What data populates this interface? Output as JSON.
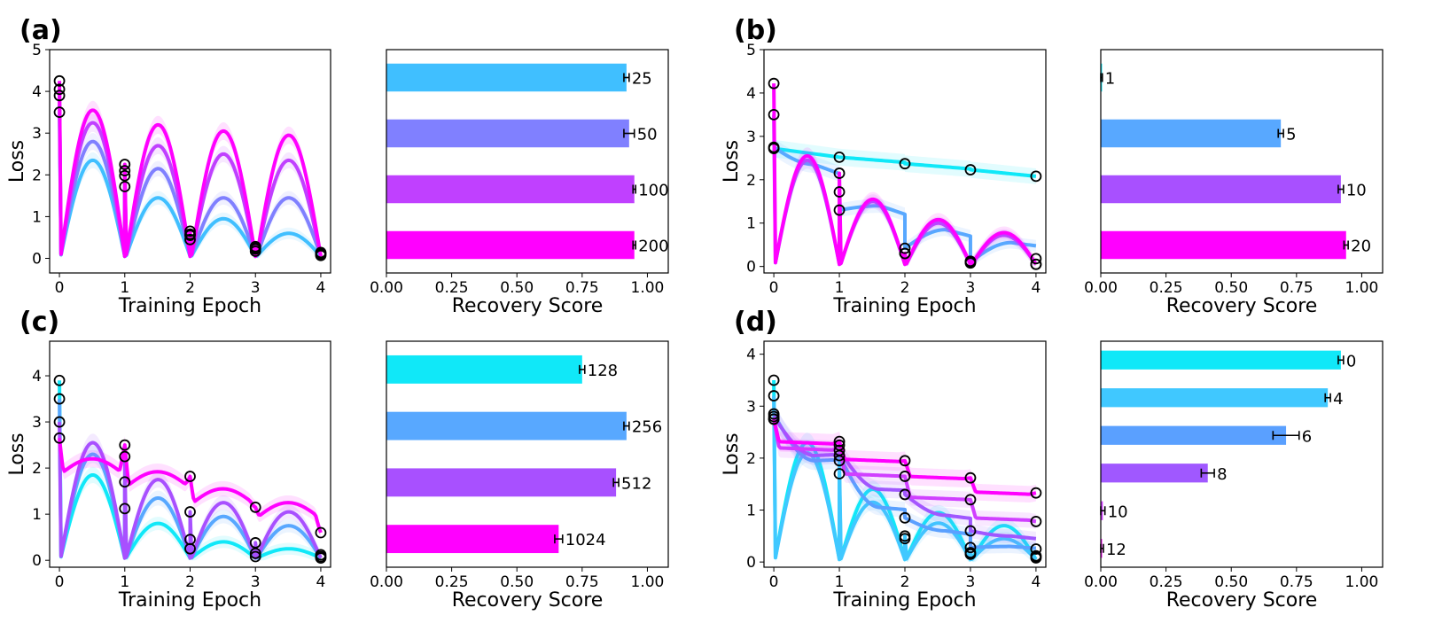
{
  "figure": {
    "panels": [
      "(a)",
      "(b)",
      "(c)",
      "(d)"
    ],
    "loss_ylabel": "Loss",
    "loss_xlabel": "Training Epoch",
    "bar_xlabel": "Recovery Score"
  },
  "chart_data": [
    {
      "panel": "(a)",
      "type": "line",
      "xlabel": "Training Epoch",
      "ylabel": "Loss",
      "xlim": [
        -0.15,
        4.15
      ],
      "ylim": [
        -0.35,
        5.0
      ],
      "xticks": [
        0,
        1,
        2,
        3,
        4
      ],
      "yticks": [
        0,
        1,
        2,
        3,
        4,
        5
      ],
      "grid": false,
      "series": [
        {
          "color": "#40bfff",
          "start": [
            3.5,
            1.72,
            0.45,
            0.17,
            0.07
          ],
          "peak": [
            2.35,
            1.45,
            0.95,
            0.6
          ],
          "kind": "arch"
        },
        {
          "color": "#8080ff",
          "start": [
            3.9,
            1.98,
            0.55,
            0.22,
            0.1
          ],
          "peak": [
            2.8,
            2.15,
            1.45,
            1.45
          ],
          "kind": "arch"
        },
        {
          "color": "#c040ff",
          "start": [
            4.05,
            2.1,
            0.58,
            0.25,
            0.12
          ],
          "peak": [
            3.25,
            2.7,
            2.5,
            2.35
          ],
          "kind": "arch"
        },
        {
          "color": "#ff00ff",
          "start": [
            4.25,
            2.25,
            0.65,
            0.28,
            0.14
          ],
          "peak": [
            3.55,
            3.2,
            3.05,
            2.95
          ],
          "kind": "arch"
        }
      ]
    },
    {
      "panel": "(a)",
      "type": "bar",
      "xlabel": "Recovery Score",
      "xlim": [
        0,
        1.08
      ],
      "xticks": [
        "0.00",
        "0.25",
        "0.50",
        "0.75",
        "1.00"
      ],
      "categories": [
        "25",
        "50",
        "100",
        "200"
      ],
      "values": [
        0.92,
        0.93,
        0.95,
        0.95
      ],
      "errors": [
        0.01,
        0.02,
        0.005,
        0.005
      ],
      "colors": [
        "#40bfff",
        "#8080ff",
        "#c040ff",
        "#ff00ff"
      ]
    },
    {
      "panel": "(b)",
      "type": "line",
      "xlabel": "Training Epoch",
      "ylabel": "Loss",
      "xlim": [
        -0.15,
        4.15
      ],
      "ylim": [
        -0.15,
        5.0
      ],
      "xticks": [
        0,
        1,
        2,
        3,
        4
      ],
      "yticks": [
        0,
        1,
        2,
        3,
        4,
        5
      ],
      "grid": false,
      "series": [
        {
          "color": "#10e8f8",
          "start": [
            2.72,
            2.52,
            2.37,
            2.23,
            2.08
          ],
          "end": [
            2.52,
            2.4,
            2.25,
            2.08,
            2.0
          ],
          "kind": "flat"
        },
        {
          "color": "#58a8ff",
          "start": [
            2.75,
            1.3,
            0.42,
            0.1,
            0.18
          ],
          "peak": [
            2.35,
            1.4,
            0.85,
            0.55
          ],
          "kind": "rise"
        },
        {
          "color": "#b050ff",
          "start": [
            3.5,
            1.72,
            0.3,
            0.08,
            0.05
          ],
          "peak": [
            2.45,
            1.5,
            1.0,
            0.72
          ],
          "kind": "arch"
        },
        {
          "color": "#ff00ff",
          "start": [
            4.22,
            2.15,
            0.3,
            0.12,
            0.05
          ],
          "peak": [
            2.55,
            1.55,
            1.08,
            0.78
          ],
          "kind": "arch"
        }
      ]
    },
    {
      "panel": "(b)",
      "type": "bar",
      "xlabel": "Recovery Score",
      "xlim": [
        0,
        1.08
      ],
      "xticks": [
        "0.00",
        "0.25",
        "0.50",
        "0.75",
        "1.00"
      ],
      "categories": [
        "1",
        "5",
        "10",
        "20"
      ],
      "values": [
        0.003,
        0.69,
        0.92,
        0.94
      ],
      "errors": [
        0.003,
        0.01,
        0.01,
        0.008
      ],
      "colors": [
        "#10e8f8",
        "#58a8ff",
        "#a850ff",
        "#ff00ff"
      ]
    },
    {
      "panel": "(c)",
      "type": "line",
      "xlabel": "Training Epoch",
      "ylabel": "Loss",
      "xlim": [
        -0.15,
        4.15
      ],
      "ylim": [
        -0.15,
        4.75
      ],
      "xticks": [
        0,
        1,
        2,
        3,
        4
      ],
      "yticks": [
        0,
        1,
        2,
        3,
        4
      ],
      "grid": false,
      "series": [
        {
          "color": "#10e8f8",
          "start": [
            3.9,
            1.12,
            0.25,
            0.08,
            0.05
          ],
          "peak": [
            1.85,
            0.8,
            0.4,
            0.25
          ],
          "kind": "arch"
        },
        {
          "color": "#58a8ff",
          "start": [
            3.5,
            1.7,
            0.45,
            0.15,
            0.08
          ],
          "peak": [
            2.3,
            1.35,
            0.95,
            0.75
          ],
          "kind": "arch"
        },
        {
          "color": "#a850ff",
          "start": [
            3.0,
            2.25,
            1.05,
            0.38,
            0.12
          ],
          "peak": [
            2.55,
            1.75,
            1.25,
            1.05
          ],
          "kind": "arch"
        },
        {
          "color": "#ff00ff",
          "start": [
            2.65,
            2.5,
            1.82,
            1.15,
            0.6
          ],
          "peak": [
            2.2,
            1.92,
            1.55,
            1.25
          ],
          "kind": "flatarch"
        }
      ]
    },
    {
      "panel": "(c)",
      "type": "bar",
      "xlabel": "Recovery Score",
      "xlim": [
        0,
        1.08
      ],
      "xticks": [
        "0.00",
        "0.25",
        "0.50",
        "0.75",
        "1.00"
      ],
      "categories": [
        "128",
        "256",
        "512",
        "1024"
      ],
      "values": [
        0.75,
        0.92,
        0.88,
        0.66
      ],
      "errors": [
        0.01,
        0.01,
        0.01,
        0.015
      ],
      "colors": [
        "#10e8f8",
        "#58a8ff",
        "#a850ff",
        "#ff00ff"
      ]
    },
    {
      "panel": "(d)",
      "type": "line",
      "xlabel": "Training Epoch",
      "ylabel": "Loss",
      "xlim": [
        -0.15,
        4.15
      ],
      "ylim": [
        -0.1,
        4.25
      ],
      "xticks": [
        0,
        1,
        2,
        3,
        4
      ],
      "yticks": [
        0,
        1,
        2,
        3,
        4
      ],
      "grid": false,
      "series": [
        {
          "color": "#10e8f8",
          "start": [
            3.5,
            1.7,
            0.45,
            0.15,
            0.08
          ],
          "peak": [
            2.3,
            1.4,
            0.95,
            0.7
          ],
          "kind": "arch"
        },
        {
          "color": "#40c8ff",
          "start": [
            3.2,
            1.95,
            0.5,
            0.18,
            0.1
          ],
          "peak": [
            2.1,
            1.15,
            0.75,
            0.45
          ],
          "kind": "arch"
        },
        {
          "color": "#5aa0ff",
          "start": [
            2.85,
            2.05,
            0.85,
            0.28,
            0.12
          ],
          "peak": [
            1.95,
            1.05,
            0.6,
            0.3
          ],
          "kind": "rise"
        },
        {
          "color": "#a058ff",
          "start": [
            2.8,
            2.15,
            1.3,
            0.6,
            0.25
          ],
          "peak": [
            2.05,
            1.4,
            0.9,
            0.5
          ],
          "kind": "rise"
        },
        {
          "color": "#d040ff",
          "start": [
            2.75,
            2.25,
            1.65,
            1.2,
            0.78
          ],
          "peak": [
            2.2,
            1.7,
            1.25,
            0.85
          ],
          "kind": "flat2"
        },
        {
          "color": "#ff00ff",
          "start": [
            2.75,
            2.32,
            1.95,
            1.62,
            1.33
          ],
          "peak": [
            2.32,
            1.98,
            1.65,
            1.35
          ],
          "kind": "flat2"
        }
      ]
    },
    {
      "panel": "(d)",
      "type": "bar",
      "xlabel": "Recovery Score",
      "xlim": [
        0,
        1.08
      ],
      "xticks": [
        "0.00",
        "0.25",
        "0.50",
        "0.75",
        "1.00"
      ],
      "categories": [
        "0",
        "4",
        "6",
        "8",
        "10",
        "12"
      ],
      "values": [
        0.92,
        0.87,
        0.71,
        0.41,
        0.008,
        0.005
      ],
      "errors": [
        0.01,
        0.01,
        0.05,
        0.025,
        0.008,
        0.005
      ],
      "colors": [
        "#10e8f8",
        "#40c8ff",
        "#5aa0ff",
        "#a058ff",
        "#d040ff",
        "#ff00ff"
      ]
    }
  ]
}
